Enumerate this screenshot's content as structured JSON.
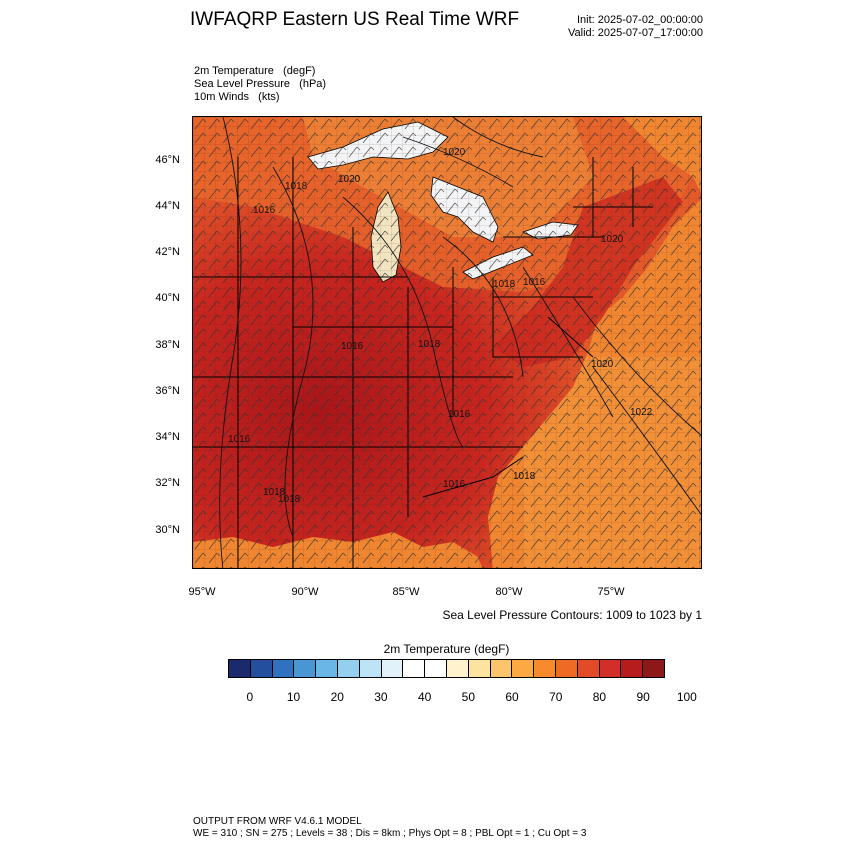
{
  "header": {
    "title": "IWFAQRP Eastern US Real Time WRF",
    "init": "Init: 2025-07-02_00:00:00",
    "valid": "Valid: 2025-07-07_17:00:00"
  },
  "fields": [
    "2m Temperature   (degF)",
    "Sea Level Pressure   (hPa)",
    "10m Winds   (kts)"
  ],
  "map": {
    "lat_ticks": [
      "46°N",
      "44°N",
      "42°N",
      "40°N",
      "38°N",
      "36°N",
      "34°N",
      "32°N",
      "30°N"
    ],
    "lon_ticks": [
      "95°W",
      "90°W",
      "85°W",
      "80°W",
      "75°W"
    ],
    "contour_note": "Sea Level Pressure Contours: 1009 to 1023 by 1",
    "pressure_labels": [
      "1020",
      "1018",
      "1020",
      "1016",
      "1018",
      "1016",
      "1016",
      "1018",
      "1020",
      "1022",
      "1016",
      "1016",
      "1018",
      "1016",
      "1018",
      "1020",
      "1018"
    ],
    "colors": {
      "land_hot": "#b71c1c",
      "land_warm": "#e3462a",
      "ocean": "#f0822e",
      "lakes": "#f3f4f6"
    }
  },
  "colorbar": {
    "title": "2m Temperature  (degF)",
    "labels": [
      "0",
      "10",
      "20",
      "30",
      "40",
      "50",
      "60",
      "70",
      "80",
      "90",
      "100"
    ],
    "colors": [
      "#1a2a6c",
      "#234f9e",
      "#2f72bf",
      "#4a96d4",
      "#6ab6e6",
      "#95cff0",
      "#bde3f7",
      "#e2f2fb",
      "#ffffff",
      "#ffffff",
      "#fff2cc",
      "#fde3a0",
      "#fcc46b",
      "#fba943",
      "#f68a2d",
      "#ee6a25",
      "#e24a28",
      "#d22f28",
      "#b71c1c",
      "#8e1818"
    ]
  },
  "footer": {
    "line1": "OUTPUT FROM WRF V4.6.1 MODEL",
    "line2": "WE = 310 ; SN = 275 ; Levels = 38 ; Dis = 8km ; Phys Opt = 8 ; PBL Opt = 1 ; Cu Opt = 3"
  }
}
